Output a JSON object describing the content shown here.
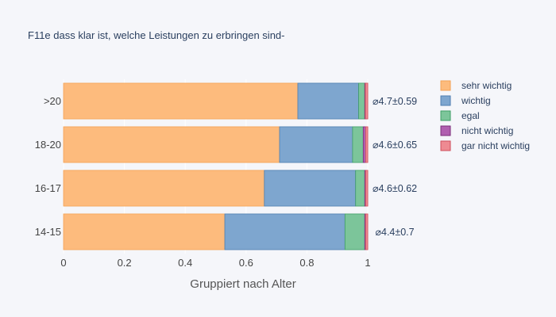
{
  "chart_data": {
    "type": "bar",
    "orientation": "horizontal",
    "barmode": "stack",
    "title": "F11e dass klar ist, welche Leistungen zu erbringen sind-",
    "xlabel": "Gruppiert nach Alter",
    "ylabel": "",
    "xlim": [
      0,
      1.18
    ],
    "x_ticks": [
      0,
      0.2,
      0.4,
      0.6,
      0.8,
      1
    ],
    "x_tick_labels": [
      "0",
      "0.2",
      "0.4",
      "0.6",
      "0.8",
      "1"
    ],
    "grid": true,
    "legend_position": "right",
    "categories": [
      "14-15",
      "16-17",
      "18-20",
      ">20"
    ],
    "series": [
      {
        "name": "sehr wichtig",
        "color": "#fdbb7d",
        "stroke": "#f3a255",
        "values": [
          0.53,
          0.66,
          0.71,
          0.77
        ]
      },
      {
        "name": "wichtig",
        "color": "#7ea6cf",
        "stroke": "#4f7fb0",
        "values": [
          0.395,
          0.3,
          0.24,
          0.2
        ]
      },
      {
        "name": "egal",
        "color": "#7cc59a",
        "stroke": "#3f9f66",
        "values": [
          0.065,
          0.03,
          0.035,
          0.02
        ]
      },
      {
        "name": "nicht wichtig",
        "color": "#b05fb0",
        "stroke": "#7a2f7a",
        "values": [
          0.003,
          0.003,
          0.008,
          0.002
        ]
      },
      {
        "name": "gar nicht wichtig",
        "color": "#ee8a92",
        "stroke": "#cf4f5c",
        "values": [
          0.007,
          0.007,
          0.007,
          0.008
        ]
      }
    ],
    "annotations": [
      "⌀4.4±0.7",
      "⌀4.6±0.62",
      "⌀4.6±0.65",
      "⌀4.7±0.59"
    ]
  }
}
